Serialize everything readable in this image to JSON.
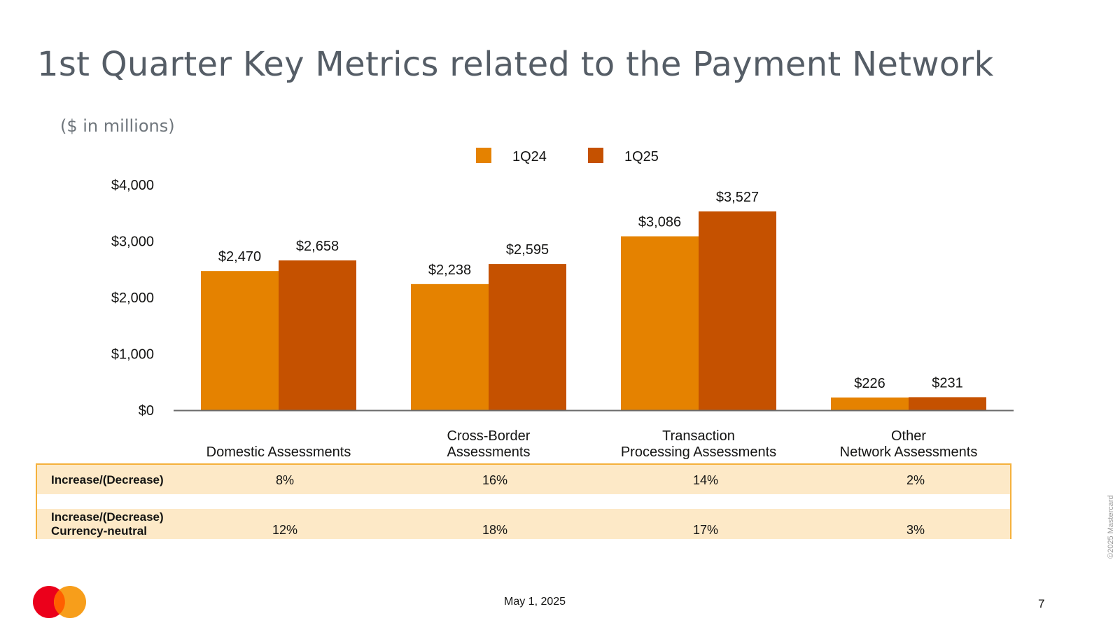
{
  "slide": {
    "title": "1st Quarter Key Metrics related to the Payment Network",
    "subtitle": "($ in millions)",
    "date": "May 1, 2025",
    "page_number": "7",
    "copyright": "©2025 Mastercard"
  },
  "chart_data": {
    "type": "bar",
    "categories": [
      [
        "Domestic Assessments"
      ],
      [
        "Cross-Border",
        "Assessments"
      ],
      [
        "Transaction",
        "Processing Assessments"
      ],
      [
        "Other",
        "Network Assessments"
      ]
    ],
    "series": [
      {
        "name": "1Q24",
        "color": "#e58200",
        "values": [
          2470,
          2238,
          3086,
          226
        ],
        "labels": [
          "$2,470",
          "$2,238",
          "$3,086",
          "$226"
        ]
      },
      {
        "name": "1Q25",
        "color": "#c55100",
        "values": [
          2658,
          2595,
          3527,
          231
        ],
        "labels": [
          "$2,658",
          "$2,595",
          "$3,527",
          "$231"
        ]
      }
    ],
    "y_ticks": [
      0,
      1000,
      2000,
      3000,
      4000
    ],
    "y_tick_labels": [
      "$0",
      "$1,000",
      "$2,000",
      "$3,000",
      "$4,000"
    ],
    "ylim": [
      0,
      4000
    ],
    "legend_position": "top-center",
    "grid": false
  },
  "table": {
    "rows": [
      {
        "label": [
          "Increase/(Decrease)"
        ],
        "values": [
          "8%",
          "16%",
          "14%",
          "2%"
        ]
      },
      {
        "label": [
          "Increase/(Decrease)",
          "Currency-neutral"
        ],
        "values": [
          "12%",
          "18%",
          "17%",
          "3%"
        ]
      }
    ]
  },
  "logo": {
    "name": "mastercard-logo",
    "colors": [
      "#eb001b",
      "#f79e1b",
      "#ff5f00"
    ]
  }
}
